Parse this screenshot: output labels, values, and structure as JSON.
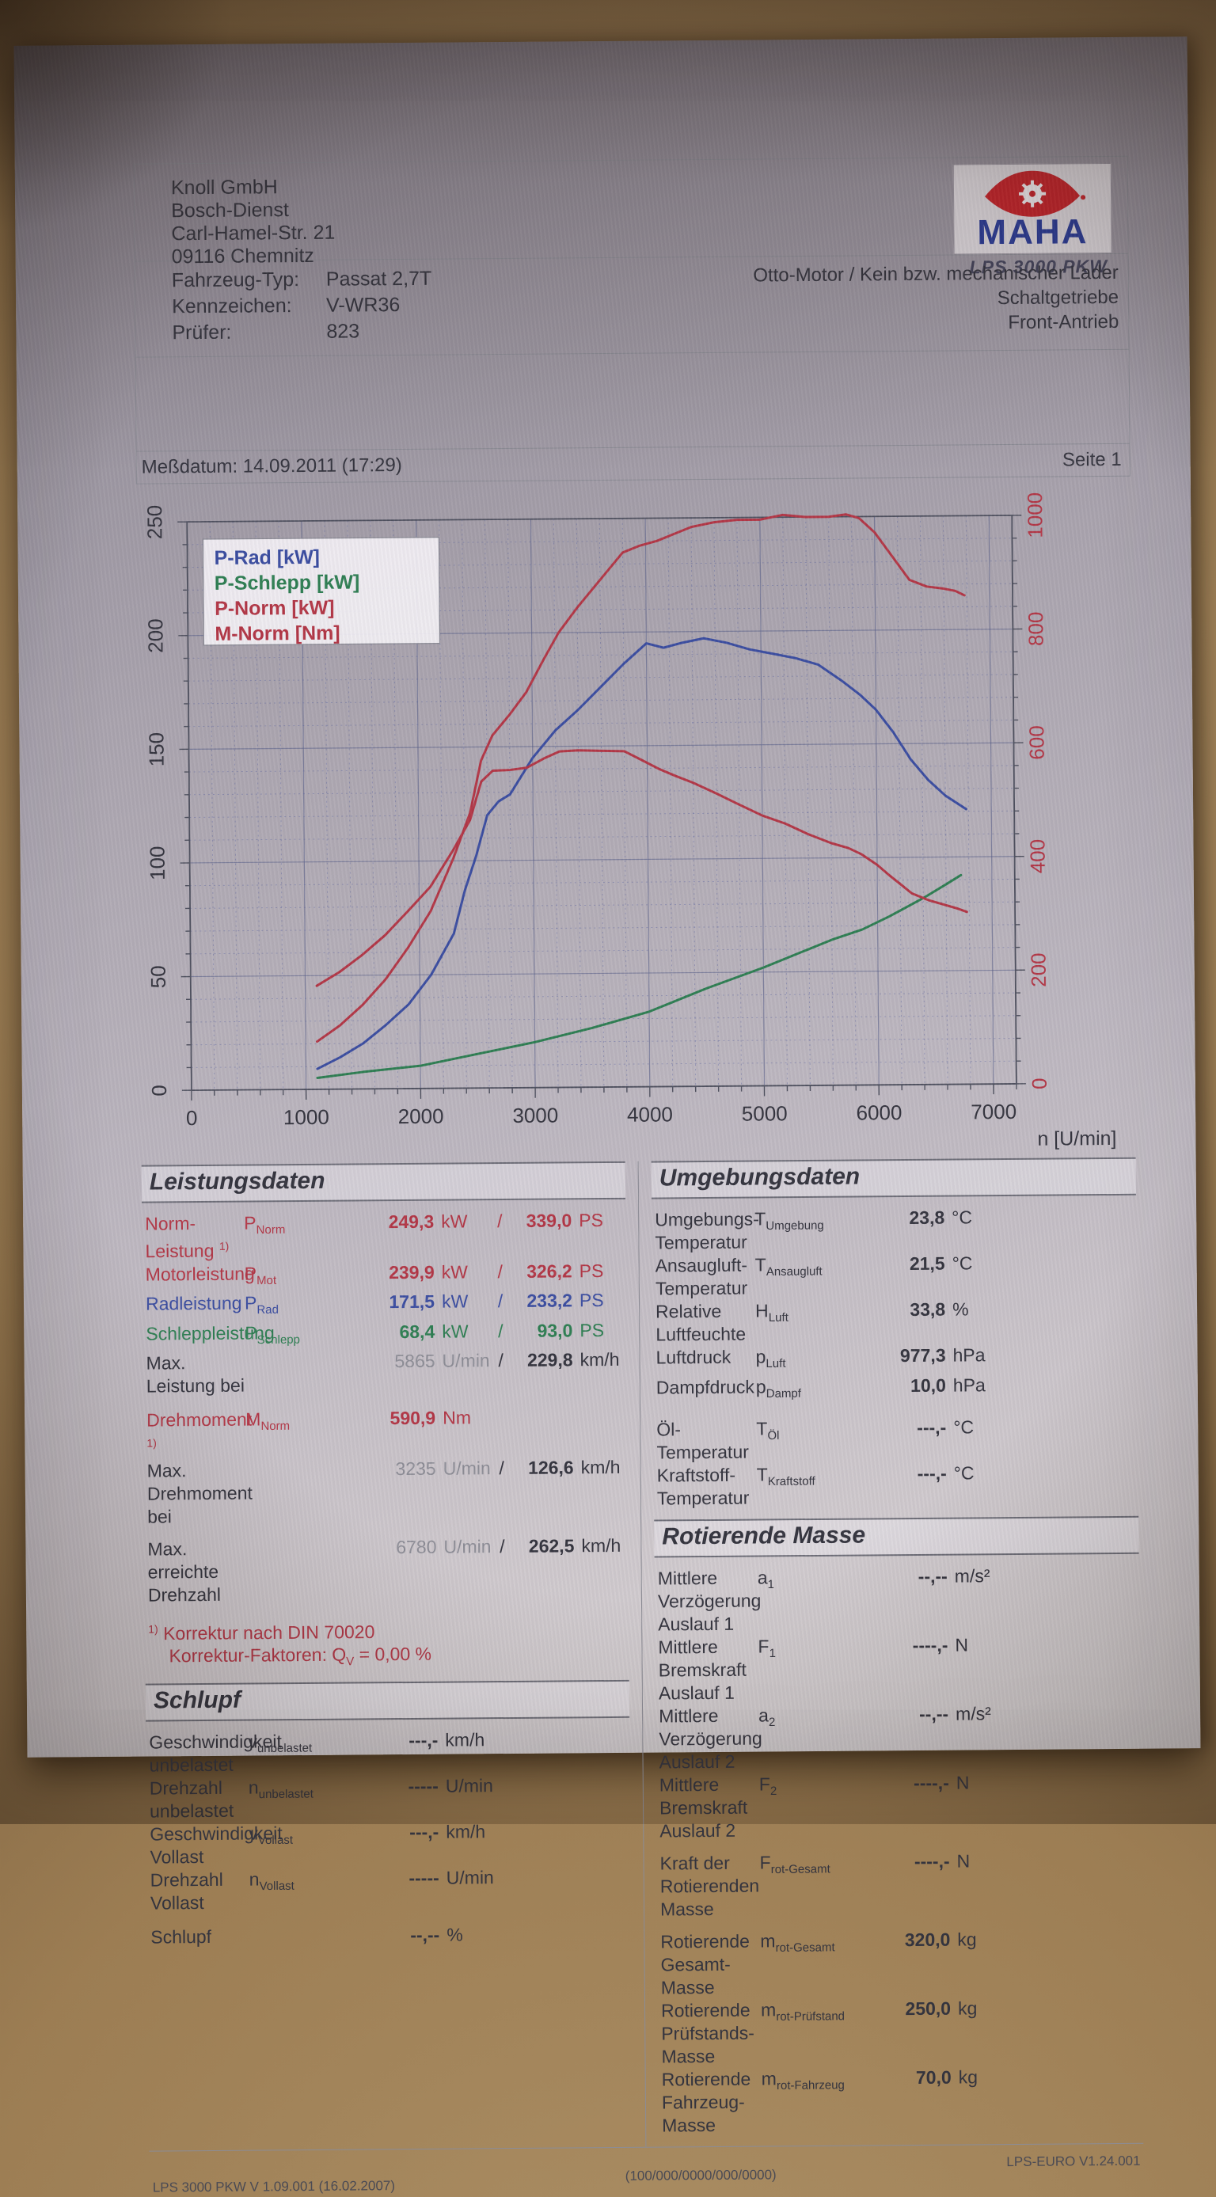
{
  "palette": {
    "red": "#b23746",
    "blue": "#3b4da0",
    "green": "#2e7e52",
    "black": "#34343e",
    "gray": "#8d8d96"
  },
  "header": {
    "address_lines": [
      "Knoll GmbH",
      "Bosch-Dienst",
      "Carl-Hamel-Str. 21",
      "09116 Chemnitz"
    ],
    "vehicle": {
      "rows": [
        {
          "label": "Fahrzeug-Typ:",
          "value": "Passat 2,7T"
        },
        {
          "label": "Kennzeichen:",
          "value": "V-WR36"
        },
        {
          "label": "Prüfer:",
          "value": "823"
        }
      ]
    },
    "engine_info": [
      "Otto-Motor / Kein bzw. mechanischer Lader",
      "Schaltgetriebe",
      "Front-Antrieb"
    ],
    "logo": {
      "brand": "MAHA",
      "caption": "LPS 3000 PKW"
    },
    "measure_date_label": "Meßdatum: 14.09.2011 (17:29)",
    "page_label": "Seite 1"
  },
  "chart_data": {
    "type": "line",
    "xlabel": "n [U/min]",
    "x_axis": {
      "min": 0,
      "max": 7200,
      "major": 1000,
      "minor": 200,
      "tick_labels": [
        "0",
        "1000",
        "2000",
        "3000",
        "4000",
        "5000",
        "6000",
        "7000"
      ]
    },
    "y_left": {
      "min": 0,
      "max": 250,
      "major": 50,
      "minor": 10,
      "tick_labels": [
        "0",
        "50",
        "100",
        "150",
        "200",
        "250"
      ],
      "color": "#34343e"
    },
    "y_right": {
      "min": 0,
      "max": 1000,
      "major": 200,
      "tick_labels": [
        "0",
        "200",
        "400",
        "600",
        "800",
        "1000"
      ],
      "color": "#b23746"
    },
    "legend": {
      "position": "top-left"
    },
    "grid": true,
    "series": [
      {
        "name": "P-Rad [kW]",
        "color": "#3b4da0",
        "axis": "left",
        "points": [
          [
            1100,
            9
          ],
          [
            1300,
            14
          ],
          [
            1500,
            20
          ],
          [
            1700,
            28
          ],
          [
            1900,
            37
          ],
          [
            2100,
            50
          ],
          [
            2300,
            68
          ],
          [
            2400,
            87
          ],
          [
            2500,
            102
          ],
          [
            2600,
            120
          ],
          [
            2700,
            126
          ],
          [
            2800,
            129
          ],
          [
            3000,
            145
          ],
          [
            3200,
            157
          ],
          [
            3400,
            166
          ],
          [
            3600,
            176
          ],
          [
            3800,
            186
          ],
          [
            4000,
            195
          ],
          [
            4150,
            193
          ],
          [
            4300,
            195
          ],
          [
            4500,
            197
          ],
          [
            4700,
            195
          ],
          [
            4900,
            192
          ],
          [
            5100,
            190
          ],
          [
            5300,
            188
          ],
          [
            5500,
            185
          ],
          [
            5700,
            178
          ],
          [
            5865,
            171.5
          ],
          [
            6000,
            165
          ],
          [
            6150,
            155
          ],
          [
            6300,
            143
          ],
          [
            6450,
            134
          ],
          [
            6600,
            127
          ],
          [
            6780,
            121
          ]
        ]
      },
      {
        "name": "P-Schlepp [kW]",
        "color": "#2e7e52",
        "axis": "left",
        "points": [
          [
            1100,
            5
          ],
          [
            1500,
            7.5
          ],
          [
            2000,
            10
          ],
          [
            2500,
            15
          ],
          [
            3000,
            20
          ],
          [
            3500,
            26
          ],
          [
            4000,
            33
          ],
          [
            4500,
            43
          ],
          [
            5000,
            52
          ],
          [
            5300,
            58
          ],
          [
            5600,
            64
          ],
          [
            5865,
            68.4
          ],
          [
            6100,
            74
          ],
          [
            6400,
            82
          ],
          [
            6600,
            88
          ],
          [
            6730,
            92
          ]
        ]
      },
      {
        "name": "P-Norm [kW]",
        "color": "#b23746",
        "axis": "left",
        "points": [
          [
            1100,
            21
          ],
          [
            1300,
            28
          ],
          [
            1500,
            37
          ],
          [
            1700,
            48
          ],
          [
            1900,
            62
          ],
          [
            2100,
            78
          ],
          [
            2300,
            101
          ],
          [
            2450,
            121
          ],
          [
            2550,
            144
          ],
          [
            2650,
            155
          ],
          [
            2800,
            164
          ],
          [
            2950,
            174
          ],
          [
            3100,
            188
          ],
          [
            3235,
            200
          ],
          [
            3400,
            211
          ],
          [
            3600,
            223
          ],
          [
            3800,
            235
          ],
          [
            3950,
            238
          ],
          [
            4100,
            240
          ],
          [
            4250,
            243
          ],
          [
            4400,
            246
          ],
          [
            4600,
            248
          ],
          [
            4800,
            249
          ],
          [
            5000,
            249
          ],
          [
            5200,
            251
          ],
          [
            5400,
            250
          ],
          [
            5600,
            250
          ],
          [
            5750,
            251
          ],
          [
            5865,
            249.3
          ],
          [
            6000,
            243
          ],
          [
            6100,
            236
          ],
          [
            6200,
            229
          ],
          [
            6300,
            222
          ],
          [
            6450,
            219
          ],
          [
            6600,
            218
          ],
          [
            6700,
            217
          ],
          [
            6780,
            215
          ]
        ]
      },
      {
        "name": "M-Norm [Nm]",
        "color": "#b23746",
        "axis": "right",
        "points": [
          [
            1100,
            182
          ],
          [
            1300,
            206
          ],
          [
            1500,
            236
          ],
          [
            1700,
            270
          ],
          [
            1900,
            312
          ],
          [
            2100,
            355
          ],
          [
            2300,
            419
          ],
          [
            2450,
            472
          ],
          [
            2550,
            539
          ],
          [
            2650,
            558
          ],
          [
            2800,
            559
          ],
          [
            2950,
            563
          ],
          [
            3100,
            579
          ],
          [
            3235,
            590.9
          ],
          [
            3400,
            592.6
          ],
          [
            3600,
            591.5
          ],
          [
            3800,
            590.5
          ],
          [
            3950,
            575
          ],
          [
            4100,
            559
          ],
          [
            4250,
            546
          ],
          [
            4400,
            534
          ],
          [
            4600,
            515
          ],
          [
            4800,
            495
          ],
          [
            5000,
            475.5
          ],
          [
            5200,
            461
          ],
          [
            5400,
            442
          ],
          [
            5600,
            426
          ],
          [
            5750,
            417
          ],
          [
            5865,
            405.9
          ],
          [
            6000,
            387
          ],
          [
            6100,
            369.5
          ],
          [
            6200,
            353
          ],
          [
            6300,
            336.5
          ],
          [
            6450,
            324
          ],
          [
            6600,
            315
          ],
          [
            6700,
            309
          ],
          [
            6780,
            303
          ]
        ]
      }
    ]
  },
  "sections": [
    {
      "id": "leistungsdaten",
      "title": "Leistungsdaten",
      "rows": [
        {
          "color": "red",
          "label": "Norm-Leistung ",
          "sup": "1)",
          "sym": "P",
          "sub": "Norm",
          "v1": "249,3",
          "u1": "kW",
          "v2": "339,0",
          "u2": "PS"
        },
        {
          "color": "red",
          "label": "Motorleistung",
          "sym": "P",
          "sub": "Mot",
          "v1": "239,9",
          "u1": "kW",
          "v2": "326,2",
          "u2": "PS"
        },
        {
          "color": "blue",
          "label": "Radleistung",
          "sym": "P",
          "sub": "Rad",
          "v1": "171,5",
          "u1": "kW",
          "v2": "233,2",
          "u2": "PS"
        },
        {
          "color": "green",
          "label": "Schleppleistung",
          "sym": "P",
          "sub": "Schlepp",
          "v1": "68,4",
          "u1": "kW",
          "v2": "93,0",
          "u2": "PS"
        },
        {
          "color": "black",
          "label": "Max. Leistung bei",
          "gray1": true,
          "v1": "5865",
          "u1": "U/min",
          "v2": "229,8",
          "u2": "km/h"
        },
        {
          "gap": true,
          "h": 14
        },
        {
          "color": "red",
          "label": "Drehmoment ",
          "sup": "1)",
          "sym": "M",
          "sub": "Norm",
          "v1": "590,9",
          "u1": "Nm"
        },
        {
          "color": "black",
          "label": "Max. Drehmoment bei",
          "gray1": true,
          "v1": "3235",
          "u1": "U/min",
          "v2": "126,6",
          "u2": "km/h"
        },
        {
          "gap": true,
          "h": 12
        },
        {
          "color": "black",
          "label": "Max. erreichte Drehzahl",
          "gray1": true,
          "v1": "6780",
          "u1": "U/min",
          "v2": "262,5",
          "u2": "km/h"
        },
        {
          "gap": true,
          "h": 14
        },
        {
          "color": "red",
          "note": [
            {
              "t": "1)",
              "sup": true
            },
            {
              "t": " Korrektur nach DIN 70020"
            }
          ]
        },
        {
          "color": "red",
          "indent": true,
          "note": [
            {
              "t": "Korrektur-Faktoren: Q"
            },
            {
              "t": "V",
              "sub": true
            },
            {
              "t": " =   0,00 %"
            }
          ]
        }
      ]
    },
    {
      "id": "umgebungsdaten",
      "title": "Umgebungsdaten",
      "rows": [
        {
          "label": "Umgebungs-Temperatur",
          "sym": "T",
          "sub": "Umgebung",
          "v1": "23,8",
          "u1": "°C"
        },
        {
          "label": "Ansaugluft-Temperatur",
          "sym": "T",
          "sub": "Ansaugluft",
          "v1": "21,5",
          "u1": "°C"
        },
        {
          "label": "Relative Luftfeuchte",
          "sym": "H",
          "sub": "Luft",
          "v1": "33,8",
          "u1": "%"
        },
        {
          "label": "Luftdruck",
          "sym": "p",
          "sub": "Luft",
          "v1": "977,3",
          "u1": "hPa"
        },
        {
          "label": "Dampfdruck",
          "sym": "p",
          "sub": "Dampf",
          "v1": "10,0",
          "u1": "hPa"
        },
        {
          "gap": true,
          "h": 16
        },
        {
          "label": "Öl-Temperatur",
          "sym": "T",
          "sub": "Öl",
          "v1": "---,-",
          "u1": "°C"
        },
        {
          "label": "Kraftstoff-Temperatur",
          "sym": "T",
          "sub": "Kraftstoff",
          "v1": "---,-",
          "u1": "°C"
        }
      ]
    },
    {
      "id": "schlupf",
      "title": "Schlupf",
      "rows": [
        {
          "label": "Geschwindigkeit unbelastet",
          "sym": "v",
          "sub": "unbelastet",
          "v1": "---,-",
          "u1": "km/h"
        },
        {
          "label": "Drehzahl unbelastet",
          "sym": "n",
          "sub": "unbelastet",
          "v1": "-----",
          "u1": "U/min"
        },
        {
          "label": "Geschwindigkeit Vollast",
          "sym": "v",
          "sub": "Vollast",
          "v1": "---,-",
          "u1": "km/h"
        },
        {
          "label": "Drehzahl Vollast",
          "sym": "n",
          "sub": "Vollast",
          "v1": "-----",
          "u1": "U/min"
        },
        {
          "gap": true,
          "h": 14
        },
        {
          "label": "Schlupf",
          "v1": "--,--",
          "u1": "%"
        }
      ]
    },
    {
      "id": "rotierende_masse",
      "title": "Rotierende Masse",
      "rows": [
        {
          "label": "Mittlere Verzögerung Auslauf 1",
          "sym": "a",
          "sub": "1",
          "v1": "--,--",
          "u1": "m/s²"
        },
        {
          "label": "Mittlere Bremskraft Auslauf 1",
          "sym": "F",
          "sub": "1",
          "v1": "----,-",
          "u1": "N"
        },
        {
          "label": "Mittlere Verzögerung Auslauf 2",
          "sym": "a",
          "sub": "2",
          "v1": "--,--",
          "u1": "m/s²"
        },
        {
          "label": "Mittlere Bremskraft Auslauf 2",
          "sym": "F",
          "sub": "2",
          "v1": "----,-",
          "u1": "N"
        },
        {
          "gap": true,
          "h": 12
        },
        {
          "label": "Kraft der Rotierenden Masse",
          "sym": "F",
          "sub": "rot-Gesamt",
          "v1": "----,-",
          "u1": "N"
        },
        {
          "gap": true,
          "h": 12
        },
        {
          "label": "Rotierende Gesamt-Masse",
          "sym": "m",
          "sub": "rot-Gesamt",
          "v1": "320,0",
          "u1": "kg"
        },
        {
          "label": "Rotierende Prüfstands-Masse",
          "sym": "m",
          "sub": "rot-Prüfstand",
          "v1": "250,0",
          "u1": "kg"
        },
        {
          "label": "Rotierende Fahrzeug-Masse",
          "sym": "m",
          "sub": "rot-Fahrzeug",
          "v1": "70,0",
          "u1": "kg"
        }
      ]
    }
  ],
  "footer": {
    "left": "LPS 3000 PKW V 1.09.001 (16.02.2007)",
    "center": "(100/000/0000/000/0000)",
    "right": "LPS-EURO V1.24.001"
  }
}
